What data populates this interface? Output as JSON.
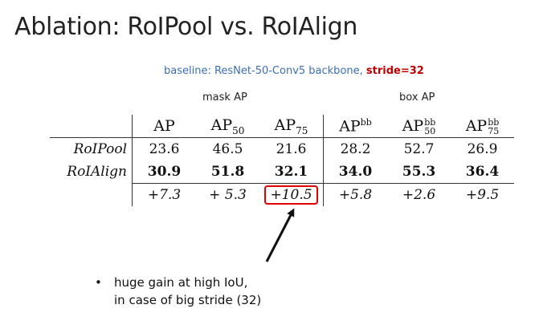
{
  "title": "Ablation: RoIPool vs. RoIAlign",
  "subtitle": {
    "baseline": "baseline: ResNet-50-Conv5 backbone, ",
    "stride": "stride=32"
  },
  "groups": {
    "mask": "mask AP",
    "box": "box AP"
  },
  "columns": [
    {
      "base": "AP",
      "sup": "",
      "sub": ""
    },
    {
      "base": "AP",
      "sup": "",
      "sub": "50"
    },
    {
      "base": "AP",
      "sup": "",
      "sub": "75"
    },
    {
      "base": "AP",
      "sup": "bb",
      "sub": ""
    },
    {
      "base": "AP",
      "sup": "bb",
      "sub": "50"
    },
    {
      "base": "AP",
      "sup": "bb",
      "sub": "75"
    }
  ],
  "rows": [
    {
      "label": "RoIPool",
      "values": [
        "23.6",
        "46.5",
        "21.6",
        "28.2",
        "52.7",
        "26.9"
      ]
    },
    {
      "label": "RoIAlign",
      "values": [
        "30.9",
        "51.8",
        "32.1",
        "34.0",
        "55.3",
        "36.4"
      ]
    },
    {
      "label": "",
      "values": [
        "+7.3",
        "+ 5.3",
        "+10.5",
        "+5.8",
        "+2.6",
        "+9.5"
      ]
    }
  ],
  "bullet": {
    "line1": "huge gain at high IoU,",
    "line2": "in case of big stride (32)"
  },
  "colors": {
    "highlight": "#e00000",
    "subtitle_blue": "#3b6fb6",
    "stride_red": "#c00000"
  }
}
